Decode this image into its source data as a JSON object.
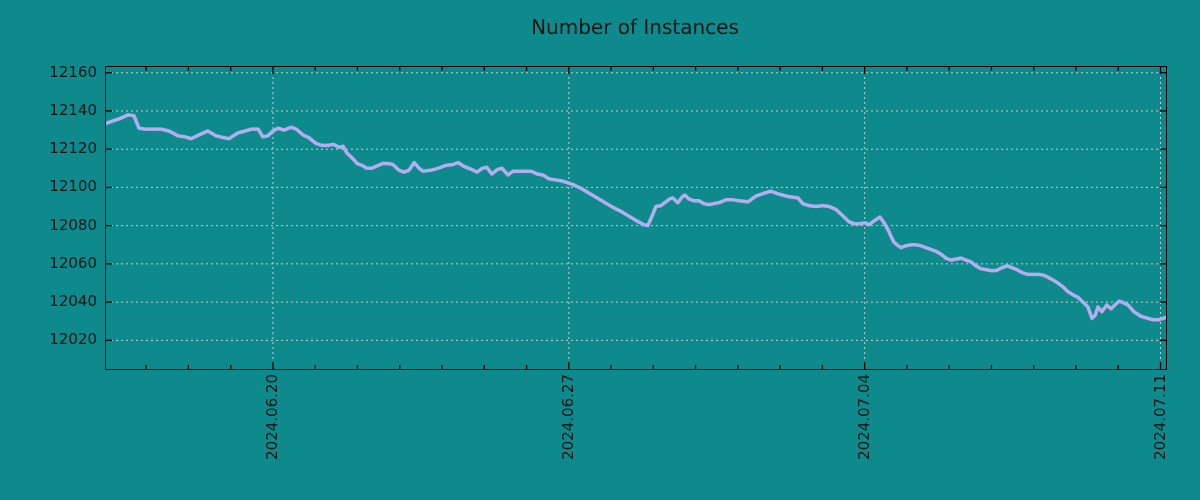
{
  "colors": {
    "background": "#0f8a8c",
    "line": "#b4adee",
    "grid": "#c6cecd",
    "axis": "#000000",
    "text": "#0c1414"
  },
  "chart_data": {
    "type": "line",
    "title": "Number of Instances",
    "legend": "none",
    "grid": "dashed",
    "x_unit": "days since plot left edge (~2024.06.16)",
    "x_range_days": [
      0,
      25.08
    ],
    "x_tick_labels": [
      "2024.06.20",
      "2024.06.27",
      "2024.07.04",
      "2024.07.11"
    ],
    "x_tick_days": [
      3.95,
      10.95,
      17.95,
      24.95
    ],
    "x_minor_tick_interval_days": 1,
    "x_minor_tick_start_day": 0.95,
    "y_ticks": [
      12020,
      12040,
      12060,
      12080,
      12100,
      12120,
      12140,
      12160
    ],
    "y_range": [
      12005,
      12163
    ],
    "series": [
      {
        "name": "instances",
        "points": [
          [
            0,
            12133.5
          ],
          [
            0.12,
            12134.5
          ],
          [
            0.26,
            12135.5
          ],
          [
            0.38,
            12136.5
          ],
          [
            0.52,
            12138
          ],
          [
            0.66,
            12137.5
          ],
          [
            0.78,
            12131
          ],
          [
            0.92,
            12130.5
          ],
          [
            1.11,
            12130.5
          ],
          [
            1.3,
            12130.5
          ],
          [
            1.49,
            12129.5
          ],
          [
            1.7,
            12127
          ],
          [
            1.87,
            12126.5
          ],
          [
            2.01,
            12125.5
          ],
          [
            2.2,
            12127.5
          ],
          [
            2.41,
            12129.5
          ],
          [
            2.6,
            12127
          ],
          [
            2.79,
            12126
          ],
          [
            2.91,
            12125.5
          ],
          [
            3.12,
            12128.5
          ],
          [
            3.29,
            12129.5
          ],
          [
            3.45,
            12130.5
          ],
          [
            3.6,
            12130.5
          ],
          [
            3.71,
            12126.5
          ],
          [
            3.83,
            12127
          ],
          [
            3.95,
            12129.5
          ],
          [
            4.07,
            12131
          ],
          [
            4.21,
            12130
          ],
          [
            4.38,
            12131.5
          ],
          [
            4.5,
            12130.5
          ],
          [
            4.66,
            12127.5
          ],
          [
            4.8,
            12126
          ],
          [
            4.97,
            12123
          ],
          [
            5.11,
            12122
          ],
          [
            5.25,
            12122
          ],
          [
            5.39,
            12122.5
          ],
          [
            5.51,
            12121
          ],
          [
            5.61,
            12121.5
          ],
          [
            5.7,
            12118
          ],
          [
            5.82,
            12115.5
          ],
          [
            5.94,
            12112.5
          ],
          [
            6.06,
            12111.5
          ],
          [
            6.17,
            12110
          ],
          [
            6.29,
            12110
          ],
          [
            6.44,
            12111.5
          ],
          [
            6.55,
            12112.5
          ],
          [
            6.67,
            12112.5
          ],
          [
            6.79,
            12112
          ],
          [
            6.93,
            12109
          ],
          [
            7.05,
            12108
          ],
          [
            7.17,
            12109
          ],
          [
            7.29,
            12113
          ],
          [
            7.41,
            12110
          ],
          [
            7.5,
            12108.5
          ],
          [
            7.69,
            12109
          ],
          [
            7.86,
            12110
          ],
          [
            8.04,
            12111.5
          ],
          [
            8.21,
            12112
          ],
          [
            8.33,
            12113
          ],
          [
            8.47,
            12111
          ],
          [
            8.64,
            12109.5
          ],
          [
            8.78,
            12108
          ],
          [
            8.9,
            12110
          ],
          [
            9.01,
            12110.5
          ],
          [
            9.13,
            12107
          ],
          [
            9.27,
            12109.5
          ],
          [
            9.37,
            12110
          ],
          [
            9.51,
            12106.5
          ],
          [
            9.63,
            12108.5
          ],
          [
            9.82,
            12108.5
          ],
          [
            10.06,
            12108.5
          ],
          [
            10.2,
            12107
          ],
          [
            10.34,
            12106.5
          ],
          [
            10.48,
            12104.5
          ],
          [
            10.62,
            12104
          ],
          [
            10.76,
            12103.5
          ],
          [
            10.91,
            12102.5
          ],
          [
            11.05,
            12101.5
          ],
          [
            11.24,
            12099.5
          ],
          [
            11.43,
            12097
          ],
          [
            11.62,
            12094.5
          ],
          [
            11.81,
            12092
          ],
          [
            12,
            12089.5
          ],
          [
            12.18,
            12087.5
          ],
          [
            12.37,
            12085
          ],
          [
            12.56,
            12082.5
          ],
          [
            12.73,
            12080.5
          ],
          [
            12.82,
            12080
          ],
          [
            12.92,
            12085
          ],
          [
            13.01,
            12090
          ],
          [
            13.13,
            12090.5
          ],
          [
            13.25,
            12092.5
          ],
          [
            13.34,
            12094
          ],
          [
            13.41,
            12094.5
          ],
          [
            13.53,
            12092
          ],
          [
            13.63,
            12095
          ],
          [
            13.7,
            12096
          ],
          [
            13.79,
            12094
          ],
          [
            13.91,
            12093
          ],
          [
            14.03,
            12093
          ],
          [
            14.15,
            12091.5
          ],
          [
            14.27,
            12091
          ],
          [
            14.38,
            12091.5
          ],
          [
            14.5,
            12092
          ],
          [
            14.67,
            12093.5
          ],
          [
            14.83,
            12093.5
          ],
          [
            14.98,
            12093
          ],
          [
            15.19,
            12092.5
          ],
          [
            15.38,
            12095.5
          ],
          [
            15.57,
            12097
          ],
          [
            15.73,
            12098
          ],
          [
            15.92,
            12096.5
          ],
          [
            16.09,
            12095.5
          ],
          [
            16.21,
            12095
          ],
          [
            16.37,
            12094.5
          ],
          [
            16.49,
            12091.5
          ],
          [
            16.63,
            12090.5
          ],
          [
            16.8,
            12090
          ],
          [
            16.96,
            12090.5
          ],
          [
            17.11,
            12090
          ],
          [
            17.27,
            12088.5
          ],
          [
            17.44,
            12085
          ],
          [
            17.58,
            12082
          ],
          [
            17.7,
            12081
          ],
          [
            17.82,
            12081
          ],
          [
            17.96,
            12081.5
          ],
          [
            18.05,
            12080.5
          ],
          [
            18.17,
            12082.5
          ],
          [
            18.31,
            12084.5
          ],
          [
            18.41,
            12081.5
          ],
          [
            18.5,
            12078
          ],
          [
            18.57,
            12074.5
          ],
          [
            18.64,
            12071.5
          ],
          [
            18.74,
            12069.5
          ],
          [
            18.81,
            12068.5
          ],
          [
            18.93,
            12069.5
          ],
          [
            19.05,
            12070
          ],
          [
            19.16,
            12070
          ],
          [
            19.28,
            12069.5
          ],
          [
            19.4,
            12068.5
          ],
          [
            19.52,
            12067.5
          ],
          [
            19.64,
            12066.5
          ],
          [
            19.76,
            12065
          ],
          [
            19.87,
            12063
          ],
          [
            19.99,
            12062
          ],
          [
            20.11,
            12062.5
          ],
          [
            20.23,
            12063
          ],
          [
            20.35,
            12062
          ],
          [
            20.47,
            12061
          ],
          [
            20.58,
            12059
          ],
          [
            20.7,
            12057.5
          ],
          [
            20.82,
            12057
          ],
          [
            20.94,
            12056.5
          ],
          [
            21.06,
            12056.5
          ],
          [
            21.2,
            12058
          ],
          [
            21.32,
            12059
          ],
          [
            21.44,
            12058
          ],
          [
            21.55,
            12057
          ],
          [
            21.67,
            12055.5
          ],
          [
            21.81,
            12054.5
          ],
          [
            21.96,
            12054.5
          ],
          [
            22.07,
            12054.5
          ],
          [
            22.19,
            12054
          ],
          [
            22.29,
            12053
          ],
          [
            22.41,
            12051.5
          ],
          [
            22.52,
            12050
          ],
          [
            22.64,
            12048
          ],
          [
            22.76,
            12045.5
          ],
          [
            22.83,
            12044.5
          ],
          [
            22.9,
            12043.5
          ],
          [
            23,
            12042.5
          ],
          [
            23.07,
            12041
          ],
          [
            23.14,
            12039.5
          ],
          [
            23.23,
            12037.5
          ],
          [
            23.33,
            12031.5
          ],
          [
            23.4,
            12033
          ],
          [
            23.47,
            12037.5
          ],
          [
            23.56,
            12035
          ],
          [
            23.68,
            12038.5
          ],
          [
            23.78,
            12036.5
          ],
          [
            23.87,
            12038.5
          ],
          [
            23.97,
            12040.5
          ],
          [
            24.04,
            12040
          ],
          [
            24.18,
            12038.5
          ],
          [
            24.32,
            12035
          ],
          [
            24.49,
            12032.5
          ],
          [
            24.65,
            12031.5
          ],
          [
            24.77,
            12030.8
          ],
          [
            24.91,
            12030.8
          ],
          [
            25.01,
            12031.5
          ],
          [
            25.08,
            12032
          ]
        ]
      }
    ]
  }
}
